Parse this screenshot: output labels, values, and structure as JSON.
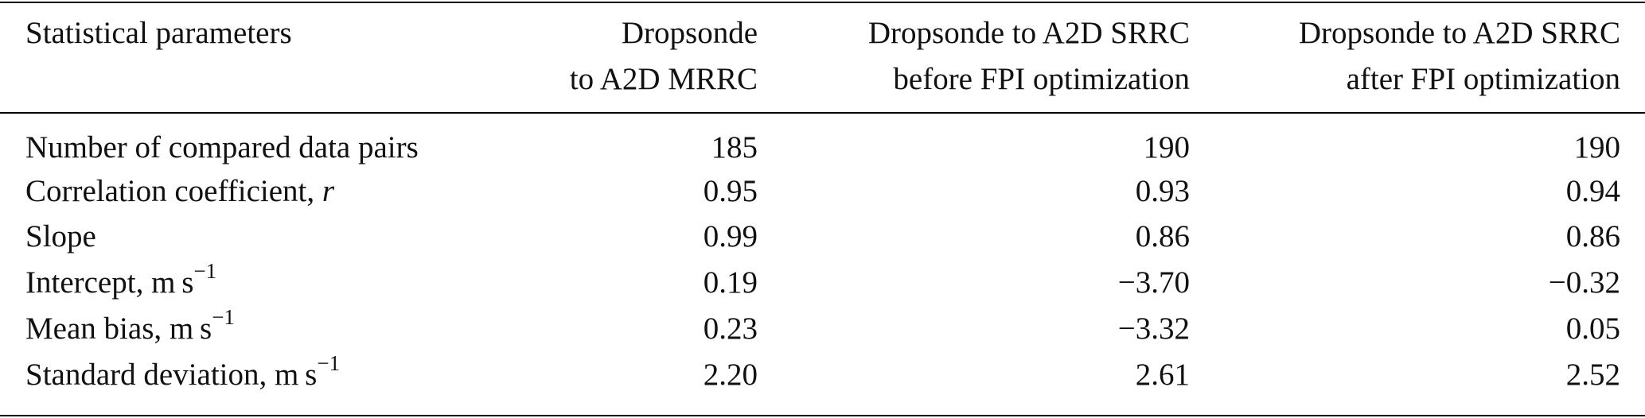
{
  "table": {
    "header": [
      [
        "Statistical parameters"
      ],
      [
        "Dropsonde",
        "to A2D MRRC"
      ],
      [
        "Dropsonde to A2D SRRC",
        "before FPI optimization"
      ],
      [
        "Dropsonde to A2D SRRC",
        "after FPI optimization"
      ]
    ],
    "rows": [
      {
        "label": {
          "text": "Number of compared data pairs"
        },
        "values": [
          "185",
          "190",
          "190"
        ]
      },
      {
        "label": {
          "text": "Correlation coefficient, ",
          "italic": "r"
        },
        "values": [
          "0.95",
          "0.93",
          "0.94"
        ]
      },
      {
        "label": {
          "text": "Slope"
        },
        "values": [
          "0.99",
          "0.86",
          "0.86"
        ]
      },
      {
        "label": {
          "text": "Intercept, m s",
          "sup": "−1"
        },
        "values": [
          "0.19",
          "−3.70",
          "−0.32"
        ]
      },
      {
        "label": {
          "text": "Mean bias, m s",
          "sup": "−1"
        },
        "values": [
          "0.23",
          "−3.32",
          "0.05"
        ]
      },
      {
        "label": {
          "text": "Standard deviation, m s",
          "sup": "−1"
        },
        "values": [
          "2.20",
          "2.61",
          "2.52"
        ]
      }
    ]
  }
}
